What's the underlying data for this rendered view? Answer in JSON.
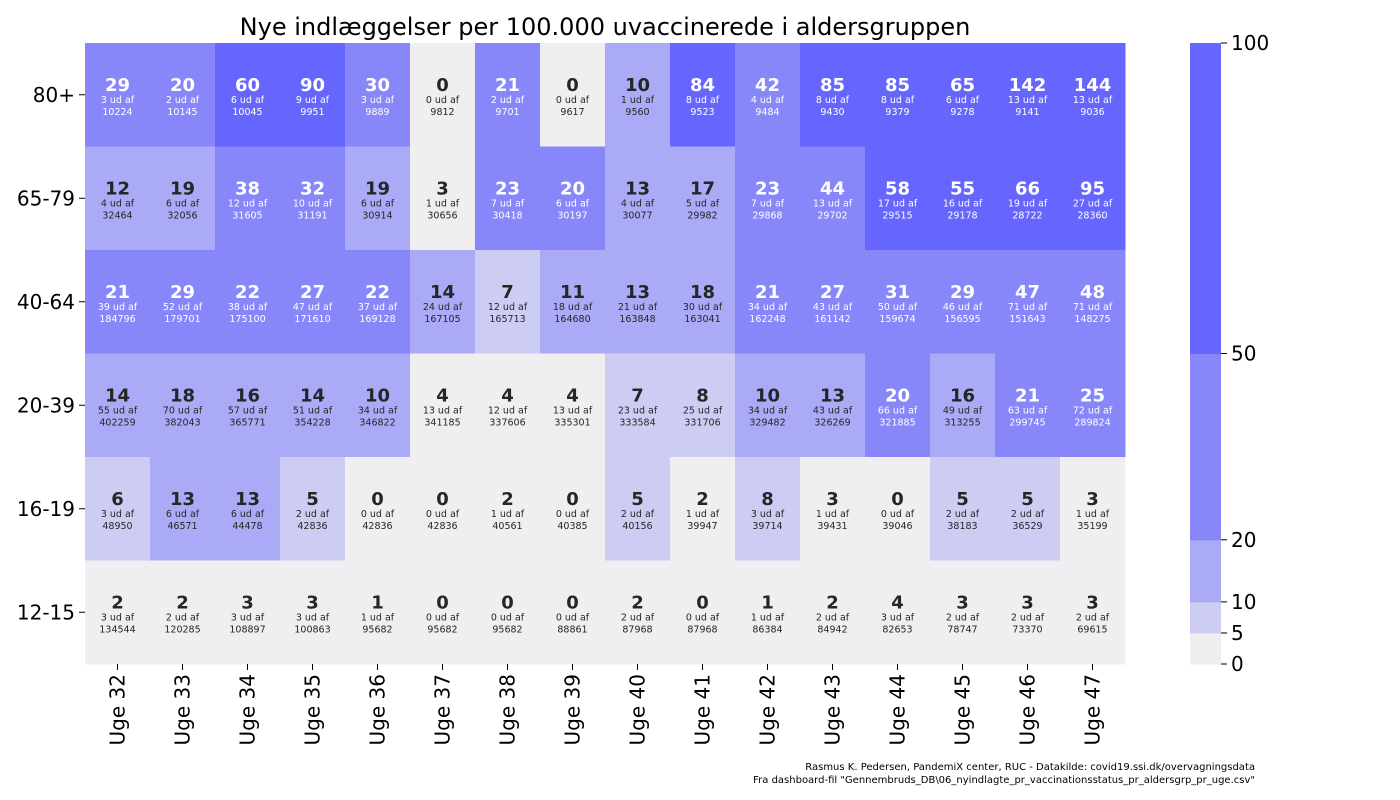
{
  "chart_data": {
    "type": "heatmap",
    "title": "Nye indlæggelser per 100.000 uvaccinerede i aldersgruppen",
    "x_labels": [
      "Uge 32",
      "Uge 33",
      "Uge 34",
      "Uge 35",
      "Uge 36",
      "Uge 37",
      "Uge 38",
      "Uge 39",
      "Uge 40",
      "Uge 41",
      "Uge 42",
      "Uge 43",
      "Uge 44",
      "Uge 45",
      "Uge 46",
      "Uge 47"
    ],
    "y_labels": [
      "80+",
      "65-79",
      "40-64",
      "20-39",
      "16-19",
      "12-15"
    ],
    "cell_subtext_connector": "ud af",
    "rows": [
      {
        "label": "80+",
        "values": [
          29,
          20,
          60,
          90,
          30,
          0,
          21,
          0,
          10,
          84,
          42,
          85,
          85,
          65,
          142,
          144
        ],
        "counts": [
          3,
          2,
          6,
          9,
          3,
          0,
          2,
          0,
          1,
          8,
          4,
          8,
          8,
          6,
          13,
          13
        ],
        "populations": [
          10224,
          10145,
          10045,
          9951,
          9889,
          9812,
          9701,
          9617,
          9560,
          9523,
          9484,
          9430,
          9379,
          9278,
          9141,
          9036
        ]
      },
      {
        "label": "65-79",
        "values": [
          12,
          19,
          38,
          32,
          19,
          3,
          23,
          20,
          13,
          17,
          23,
          44,
          58,
          55,
          66,
          95
        ],
        "counts": [
          4,
          6,
          12,
          10,
          6,
          1,
          7,
          6,
          4,
          5,
          7,
          13,
          17,
          16,
          19,
          27
        ],
        "populations": [
          32464,
          32056,
          31605,
          31191,
          30914,
          30656,
          30418,
          30197,
          30077,
          29982,
          29868,
          29702,
          29515,
          29178,
          28722,
          28360
        ]
      },
      {
        "label": "40-64",
        "values": [
          21,
          29,
          22,
          27,
          22,
          14,
          7,
          11,
          13,
          18,
          21,
          27,
          31,
          29,
          47,
          48
        ],
        "counts": [
          39,
          52,
          38,
          47,
          37,
          24,
          12,
          18,
          21,
          30,
          34,
          43,
          50,
          46,
          71,
          71
        ],
        "populations": [
          184796,
          179701,
          175100,
          171610,
          169128,
          167105,
          165713,
          164680,
          163848,
          163041,
          162248,
          161142,
          159674,
          156595,
          151643,
          148275
        ]
      },
      {
        "label": "20-39",
        "values": [
          14,
          18,
          16,
          14,
          10,
          4,
          4,
          4,
          7,
          8,
          10,
          13,
          20,
          16,
          21,
          25
        ],
        "counts": [
          55,
          70,
          57,
          51,
          34,
          13,
          12,
          13,
          23,
          25,
          34,
          43,
          66,
          49,
          63,
          72
        ],
        "populations": [
          402259,
          382043,
          365771,
          354228,
          346822,
          341185,
          337606,
          335301,
          333584,
          331706,
          329482,
          326269,
          321885,
          313255,
          299745,
          289824
        ]
      },
      {
        "label": "16-19",
        "values": [
          6,
          13,
          13,
          5,
          0,
          0,
          2,
          0,
          5,
          2,
          8,
          3,
          0,
          5,
          5,
          3
        ],
        "counts": [
          3,
          6,
          6,
          2,
          0,
          0,
          1,
          0,
          2,
          1,
          3,
          1,
          0,
          2,
          2,
          1
        ],
        "populations": [
          48950,
          46571,
          44478,
          42836,
          42836,
          42836,
          40561,
          40385,
          40156,
          39947,
          39714,
          39431,
          39046,
          38183,
          36529,
          35199
        ]
      },
      {
        "label": "12-15",
        "values": [
          2,
          2,
          3,
          3,
          1,
          0,
          0,
          0,
          2,
          0,
          1,
          2,
          4,
          3,
          3,
          3
        ],
        "counts": [
          3,
          2,
          3,
          3,
          1,
          0,
          0,
          0,
          2,
          0,
          1,
          2,
          3,
          2,
          2,
          2
        ],
        "populations": [
          134544,
          120285,
          108897,
          100863,
          95682,
          95682,
          95682,
          88861,
          87968,
          87968,
          86384,
          84942,
          82653,
          78747,
          73370,
          69615
        ]
      }
    ],
    "colorbar": {
      "range": [
        0,
        100
      ],
      "ticks": [
        0,
        5,
        10,
        20,
        50,
        100
      ],
      "bins": [
        {
          "from": 0,
          "to": 5,
          "color": "#efeff2"
        },
        {
          "from": 5,
          "to": 10,
          "color": "#cdcdf4"
        },
        {
          "from": 10,
          "to": 20,
          "color": "#aaaaf7"
        },
        {
          "from": 20,
          "to": 50,
          "color": "#8787fa"
        },
        {
          "from": 50,
          "to": 100,
          "color": "#6666fe"
        }
      ]
    },
    "text_colors": {
      "dark": "#262626",
      "light": "#ffffff"
    }
  },
  "footer": {
    "line1": "Rasmus K. Pedersen, PandemiX center, RUC - Datakilde: covid19.ssi.dk/overvagningsdata",
    "line2": "Fra dashboard-fil \"Gennembruds_DB\\06_nyindlagte_pr_vaccinationsstatus_pr_aldersgrp_pr_uge.csv\""
  }
}
